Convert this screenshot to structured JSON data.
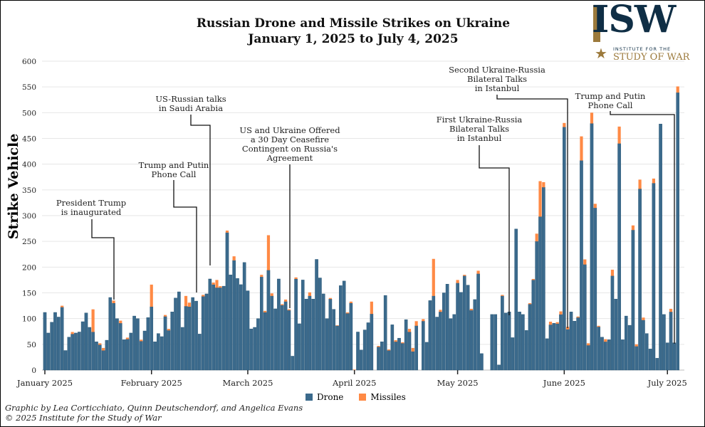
{
  "logo": {
    "text": "ISW",
    "line1": "INSTITUTE FOR THE",
    "line2": "STUDY OF WAR"
  },
  "credits": {
    "line1": "Graphic by Lea Corticchiato, Quinn Deutschendorf, and Angelica Evans",
    "line2": "© 2025 Institute for the Study of War"
  },
  "colors": {
    "drone": "#3b6a8c",
    "drone_edge": "#1f4e6e",
    "missiles": "#ff8a45",
    "grid": "#e6e6e6"
  },
  "chart_data": {
    "type": "bar",
    "stacked": true,
    "title": "Russian Drone and Missile Strikes on Ukraine",
    "subtitle": "January 1, 2025 to July 4, 2025",
    "xlabel": "",
    "ylabel": "Strike Vehicle",
    "ylim": [
      0,
      600
    ],
    "yticks": [
      0,
      50,
      100,
      150,
      200,
      250,
      300,
      350,
      400,
      450,
      500,
      550,
      600
    ],
    "x_start": "2025-01-01",
    "x_end": "2025-07-04",
    "xtick_labels": [
      {
        "date": "2025-01-01",
        "label": "January 2025"
      },
      {
        "date": "2025-02-01",
        "label": "February 2025"
      },
      {
        "date": "2025-03-01",
        "label": "March 2025"
      },
      {
        "date": "2025-04-01",
        "label": "April 2025"
      },
      {
        "date": "2025-05-01",
        "label": "May 2025"
      },
      {
        "date": "2025-06-01",
        "label": "June 2025"
      },
      {
        "date": "2025-07-01",
        "label": "July 2025"
      }
    ],
    "grid": true,
    "legend_position": "bottom",
    "series": [
      {
        "name": "Drone",
        "values": [
          112,
          72,
          93,
          112,
          103,
          122,
          38,
          64,
          70,
          72,
          74,
          94,
          111,
          83,
          74,
          55,
          49,
          38,
          58,
          141,
          130,
          100,
          91,
          59,
          60,
          72,
          105,
          100,
          56,
          76,
          102,
          123,
          55,
          71,
          65,
          104,
          77,
          113,
          140,
          152,
          83,
          124,
          123,
          141,
          134,
          70,
          143,
          148,
          177,
          166,
          160,
          160,
          163,
          267,
          185,
          213,
          178,
          166,
          209,
          154,
          80,
          83,
          100,
          181,
          112,
          194,
          144,
          119,
          177,
          126,
          133,
          116,
          27,
          177,
          90,
          175,
          138,
          144,
          138,
          215,
          179,
          148,
          100,
          138,
          118,
          86,
          164,
          173,
          110,
          130,
          0,
          74,
          39,
          78,
          92,
          109,
          0,
          45,
          55,
          145,
          38,
          88,
          55,
          62,
          52,
          98,
          74,
          36,
          86,
          0,
          95,
          54,
          135,
          144,
          103,
          113,
          150,
          167,
          100,
          108,
          169,
          151,
          183,
          165,
          116,
          137,
          187,
          32,
          0,
          0,
          108,
          108,
          10,
          144,
          111,
          113,
          63,
          274,
          113,
          108,
          77,
          128,
          175,
          250,
          298,
          355,
          61,
          88,
          91,
          90,
          108,
          472,
          79,
          113,
          95,
          102,
          407,
          205,
          48,
          479,
          315,
          84,
          64,
          55,
          59,
          183,
          138,
          440,
          59,
          105,
          87,
          272,
          46,
          352,
          97,
          71,
          41,
          363,
          23,
          478,
          108,
          53,
          113,
          53,
          539
        ]
      },
      {
        "name": "Missiles",
        "values": [
          0,
          0,
          0,
          0,
          0,
          3,
          0,
          0,
          4,
          0,
          0,
          0,
          0,
          0,
          44,
          0,
          3,
          5,
          0,
          0,
          5,
          0,
          5,
          0,
          3,
          0,
          0,
          0,
          3,
          0,
          0,
          43,
          0,
          0,
          0,
          3,
          3,
          0,
          0,
          0,
          0,
          20,
          8,
          0,
          0,
          0,
          3,
          0,
          0,
          4,
          15,
          3,
          0,
          4,
          0,
          8,
          0,
          0,
          0,
          0,
          0,
          0,
          0,
          4,
          3,
          68,
          5,
          0,
          0,
          2,
          4,
          2,
          0,
          3,
          0,
          0,
          0,
          7,
          0,
          0,
          0,
          0,
          0,
          2,
          0,
          1,
          0,
          0,
          2,
          3,
          1,
          0,
          0,
          0,
          0,
          24,
          0,
          2,
          0,
          0,
          2,
          0,
          3,
          0,
          2,
          0,
          6,
          7,
          9,
          0,
          4,
          0,
          0,
          72,
          0,
          4,
          0,
          0,
          0,
          0,
          6,
          0,
          2,
          0,
          3,
          0,
          6,
          0,
          0,
          0,
          0,
          0,
          0,
          2,
          0,
          0,
          0,
          0,
          0,
          0,
          0,
          2,
          2,
          15,
          69,
          10,
          0,
          6,
          0,
          3,
          6,
          8,
          5,
          0,
          0,
          2,
          47,
          10,
          4,
          21,
          8,
          2,
          0,
          5,
          0,
          12,
          0,
          33,
          0,
          0,
          0,
          9,
          4,
          18,
          5,
          0,
          0,
          9,
          0,
          0,
          0,
          0,
          6,
          0,
          12
        ]
      }
    ],
    "annotations": [
      {
        "date": "2025-01-20",
        "lines": [
          "President Trump",
          "is inaugurated"
        ]
      },
      {
        "date": "2025-02-12",
        "lines": [
          "Trump and Putin",
          "Phone Call"
        ]
      },
      {
        "date": "2025-02-18",
        "lines": [
          "US-Russian talks",
          "in Saudi Arabia"
        ]
      },
      {
        "date": "2025-03-11",
        "lines": [
          "US and Ukraine Offered",
          "a 30 Day Ceasefire",
          "Contingent on Russia's",
          "Agreement"
        ]
      },
      {
        "date": "2025-05-16",
        "lines": [
          "First Ukraine-Russia",
          "Bilateral Talks",
          "in Istanbul"
        ]
      },
      {
        "date": "2025-06-02",
        "lines": [
          "Second Ukraine-Russia",
          "Bilateral Talks",
          "in Istanbul"
        ]
      },
      {
        "date": "2025-07-03",
        "lines": [
          "Trump and Putin",
          "Phone Call"
        ]
      }
    ]
  }
}
